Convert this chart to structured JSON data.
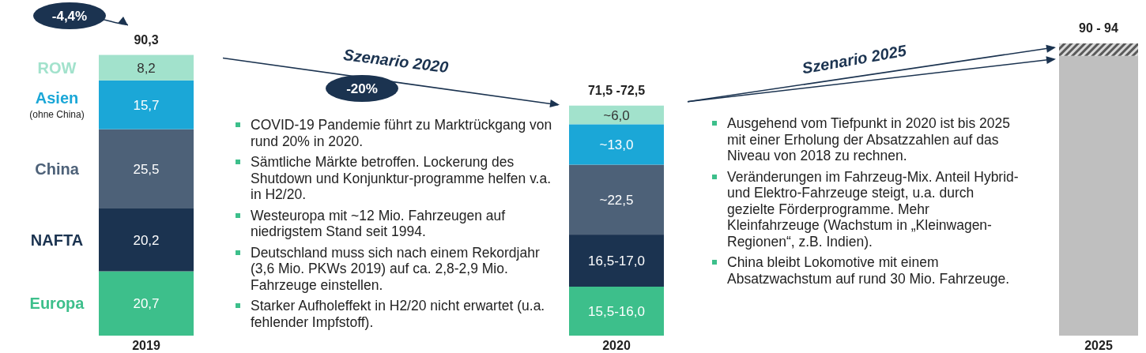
{
  "chart_data": {
    "type": "bar",
    "stacked": true,
    "data_labels": false,
    "categories": [
      "2019",
      "2020",
      "2025"
    ],
    "series": [
      {
        "name": "Europa",
        "color": "#3dbf8b",
        "values": [
          20.7,
          15.75,
          null
        ],
        "value_labels": [
          "20,7",
          "15,5-16,0",
          null
        ]
      },
      {
        "name": "NAFTA",
        "color": "#1b3350",
        "values": [
          20.2,
          16.75,
          null
        ],
        "value_labels": [
          "20,2",
          "16,5-17,0",
          null
        ]
      },
      {
        "name": "China",
        "color": "#4d6178",
        "values": [
          25.5,
          22.5,
          null
        ],
        "value_labels": [
          "25,5",
          "~22,5",
          null
        ]
      },
      {
        "name": "Asien (ohne China)",
        "color": "#1ba7d7",
        "values": [
          15.7,
          13.0,
          null
        ],
        "value_labels": [
          "15,7",
          "~13,0",
          null
        ]
      },
      {
        "name": "ROW",
        "color": "#a2e2cc",
        "values": [
          8.2,
          6.0,
          null
        ],
        "value_labels": [
          "8,2",
          "~6,0",
          null
        ]
      },
      {
        "color": "#bfbfbf",
        "values": [
          null,
          null,
          90
        ]
      },
      {
        "color": "#5a5a5a",
        "values": [
          null,
          null,
          4
        ]
      }
    ],
    "totals": [
      "90,3",
      "71,5 -72,5",
      "90 - 94"
    ],
    "annotations": [
      "-4,4%",
      "Szenario 2020",
      "-20%",
      "Szenario 2025",
      "COVID-19 Pandemie führt zu Marktrückgang von rund 20% in 2020.",
      "Sämtliche Märkte betroffen. Lockerung des Shutdown und Konjunktur-programme helfen v.a. in H2/20.",
      "Westeuropa mit ~12 Mio. Fahrzeugen auf niedrigstem Stand seit 1994.",
      "Deutschland muss sich nach einem Rekordjahr (3,6 Mio. PKWs 2019) auf ca. 2,8-2,9 Mio. Fahrzeuge einstellen.",
      "Starker Aufholeffekt in H2/20 nicht erwartet (u.a. fehlender Impfstoff).",
      "Ausgehend vom Tiefpunkt in 2020 ist bis 2025 mit einer Erholung der Absatzzahlen auf das Niveau von 2018 zu rechnen.",
      "Veränderungen im Fahrzeug-Mix. Anteil Hybrid- und Elektro-Fahrzeuge steigt, u.a. durch gezielte Förderprogramme. Mehr Kleinfahrzeuge (Wachstum in „Kleinwagen-Regionen“, z.B. Indien).",
      "China bleibt Lokomotive mit einem Absatzwachstum auf rund 30 Mio. Fahrzeuge."
    ]
  }
}
